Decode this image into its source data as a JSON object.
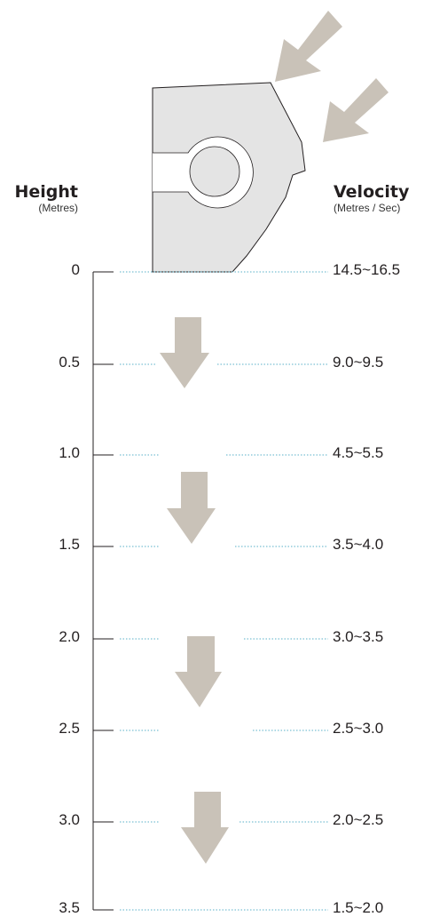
{
  "height_header": {
    "title": "Height",
    "unit": "(Metres)"
  },
  "velocity_header": {
    "title": "Velocity",
    "unit": "(Metres / Sec)"
  },
  "rows": [
    {
      "height": "0",
      "velocity": "14.5~16.5"
    },
    {
      "height": "0.5",
      "velocity": "9.0~9.5"
    },
    {
      "height": "1.0",
      "velocity": "4.5~5.5"
    },
    {
      "height": "1.5",
      "velocity": "3.5~4.0"
    },
    {
      "height": "2.0",
      "velocity": "3.0~3.5"
    },
    {
      "height": "2.5",
      "velocity": "2.5~3.0"
    },
    {
      "height": "3.0",
      "velocity": "2.0~2.5"
    },
    {
      "height": "3.5",
      "velocity": "1.5~2.0"
    }
  ],
  "colors": {
    "arrow": "#c9c2b8",
    "shape_fill": "#e4e4e4",
    "dotted_line": "#5ab0c8",
    "axis_line": "#231f20"
  }
}
